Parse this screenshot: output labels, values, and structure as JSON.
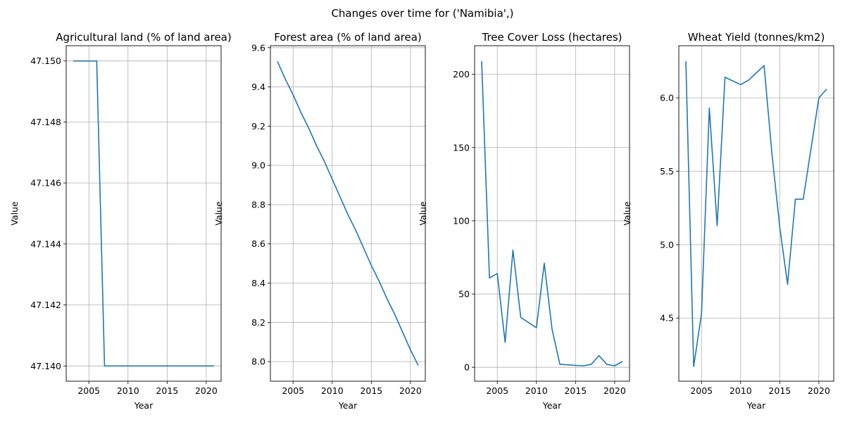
{
  "figure": {
    "suptitle": "Changes over time for ('Namibia',)",
    "line_color": "#1f77b4"
  },
  "chart_data": [
    {
      "type": "line",
      "title": "Agricultural land (% of land area)",
      "xlabel": "Year",
      "ylabel": "Value",
      "grid": true,
      "xlim": [
        2002.1,
        2021.9
      ],
      "ylim": [
        47.1395,
        47.1505
      ],
      "xticks": [
        2005,
        2010,
        2015,
        2020
      ],
      "xtick_labels": [
        "2005",
        "2010",
        "2015",
        "2020"
      ],
      "yticks": [
        47.14,
        47.142,
        47.144,
        47.146,
        47.148,
        47.15
      ],
      "ytick_labels": [
        "47.140",
        "47.142",
        "47.144",
        "47.146",
        "47.148",
        "47.150"
      ],
      "x": [
        2003,
        2004,
        2005,
        2006,
        2007,
        2008,
        2009,
        2010,
        2011,
        2012,
        2013,
        2014,
        2015,
        2016,
        2017,
        2018,
        2019,
        2020,
        2021
      ],
      "y": [
        47.15,
        47.15,
        47.15,
        47.15,
        47.14,
        47.14,
        47.14,
        47.14,
        47.14,
        47.14,
        47.14,
        47.14,
        47.14,
        47.14,
        47.14,
        47.14,
        47.14,
        47.14,
        47.14
      ]
    },
    {
      "type": "line",
      "title": "Forest area (% of land area)",
      "xlabel": "Year",
      "ylabel": "Value",
      "grid": true,
      "xlim": [
        2002.1,
        2021.9
      ],
      "ylim": [
        7.9,
        9.61
      ],
      "xticks": [
        2005,
        2010,
        2015,
        2020
      ],
      "xtick_labels": [
        "2005",
        "2010",
        "2015",
        "2020"
      ],
      "yticks": [
        8.0,
        8.2,
        8.4,
        8.6,
        8.8,
        9.0,
        9.2,
        9.4,
        9.6
      ],
      "ytick_labels": [
        "8.0",
        "8.2",
        "8.4",
        "8.6",
        "8.8",
        "9.0",
        "9.2",
        "9.4",
        "9.6"
      ],
      "x": [
        2003,
        2004,
        2005,
        2006,
        2007,
        2008,
        2009,
        2010,
        2011,
        2012,
        2013,
        2014,
        2015,
        2016,
        2017,
        2018,
        2019,
        2020,
        2021
      ],
      "y": [
        9.53,
        9.44,
        9.36,
        9.27,
        9.19,
        9.1,
        9.02,
        8.93,
        8.84,
        8.75,
        8.67,
        8.58,
        8.49,
        8.41,
        8.32,
        8.24,
        8.15,
        8.06,
        7.98
      ]
    },
    {
      "type": "line",
      "title": "Tree Cover Loss (hectares)",
      "xlabel": "Year",
      "ylabel": "Value",
      "grid": true,
      "xlim": [
        2002.1,
        2021.9
      ],
      "ylim": [
        -9.5,
        219.5
      ],
      "xticks": [
        2005,
        2010,
        2015,
        2020
      ],
      "xtick_labels": [
        "2005",
        "2010",
        "2015",
        "2020"
      ],
      "yticks": [
        0,
        50,
        100,
        150,
        200
      ],
      "ytick_labels": [
        "0",
        "50",
        "100",
        "150",
        "200"
      ],
      "x": [
        2003,
        2004,
        2005,
        2006,
        2007,
        2008,
        2009,
        2010,
        2011,
        2012,
        2013,
        2014,
        2015,
        2016,
        2017,
        2018,
        2019,
        2020,
        2021
      ],
      "y": [
        209,
        61,
        64,
        17,
        80,
        34,
        30.5,
        27,
        71,
        26,
        2,
        1.7,
        1.3,
        1,
        2,
        8,
        2,
        1,
        4
      ]
    },
    {
      "type": "line",
      "title": "Wheat Yield (tonnes/km2)",
      "xlabel": "Year",
      "ylabel": "Value",
      "grid": true,
      "xlim": [
        2002.1,
        2021.9
      ],
      "ylim": [
        4.07,
        6.355
      ],
      "xticks": [
        2005,
        2010,
        2015,
        2020
      ],
      "xtick_labels": [
        "2005",
        "2010",
        "2015",
        "2020"
      ],
      "yticks": [
        4.5,
        5.0,
        5.5,
        6.0
      ],
      "ytick_labels": [
        "4.5",
        "5.0",
        "5.5",
        "6.0"
      ],
      "x": [
        2003,
        2004,
        2005,
        2006,
        2007,
        2008,
        2009,
        2010,
        2011,
        2012,
        2013,
        2014,
        2015,
        2016,
        2017,
        2018,
        2019,
        2020,
        2021
      ],
      "y": [
        6.25,
        4.17,
        4.53,
        5.93,
        5.13,
        6.14,
        6.115,
        6.09,
        6.12,
        6.17,
        6.22,
        5.62,
        5.12,
        4.73,
        5.31,
        5.31,
        5.655,
        6.0,
        6.06
      ]
    }
  ]
}
